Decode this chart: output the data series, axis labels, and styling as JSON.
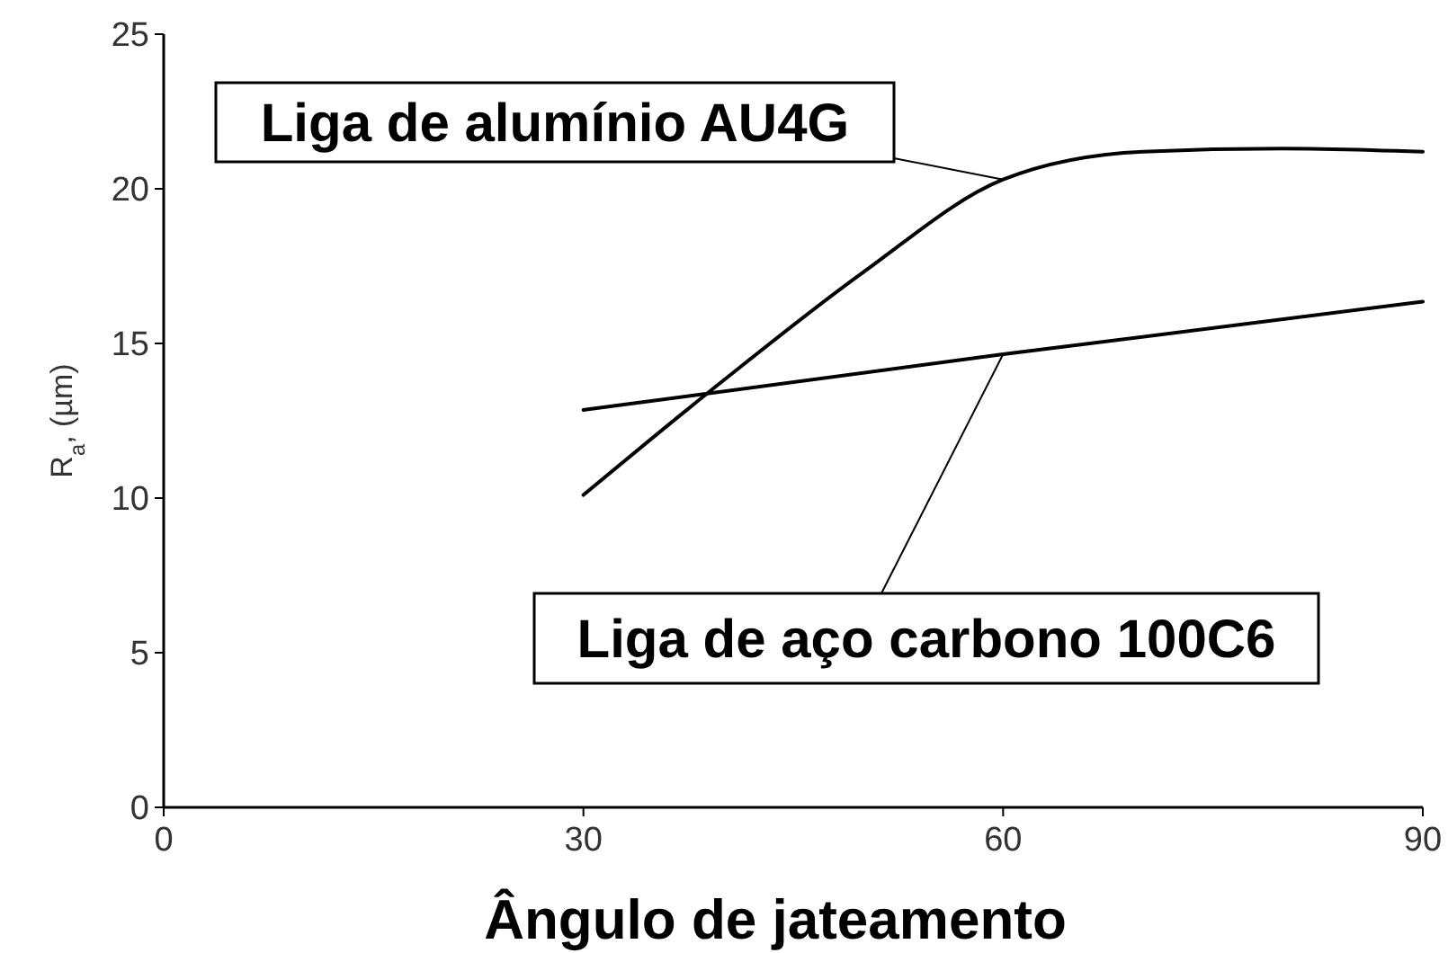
{
  "chart_data": {
    "type": "line",
    "xlabel": "Ângulo de jateamento",
    "ylabel": "R$_{a}$, (µm)",
    "xlim": [
      0,
      90
    ],
    "xticks": [
      0,
      30,
      60,
      90
    ],
    "ylim": [
      0,
      25
    ],
    "yticks": [
      0,
      5,
      10,
      15,
      20,
      25
    ],
    "grid": false,
    "marker": "none",
    "line_style": "solid",
    "series": [
      {
        "color": "#000000",
        "x": [
          30,
          40,
          50,
          60,
          70,
          80,
          90
        ],
        "values": [
          10.1,
          13.8,
          17.3,
          20.3,
          21.2,
          21.3,
          21.2
        ]
      },
      {
        "color": "#000000",
        "x": [
          30,
          60,
          90
        ],
        "values": [
          12.85,
          14.65,
          16.35
        ]
      }
    ],
    "annotations": [
      {
        "text": "Liga de alumínio AU4G",
        "x": 60,
        "y": 20.3
      },
      {
        "text": "Liga de aço carbono 100C6",
        "x": 60,
        "y": 14.65
      }
    ]
  }
}
